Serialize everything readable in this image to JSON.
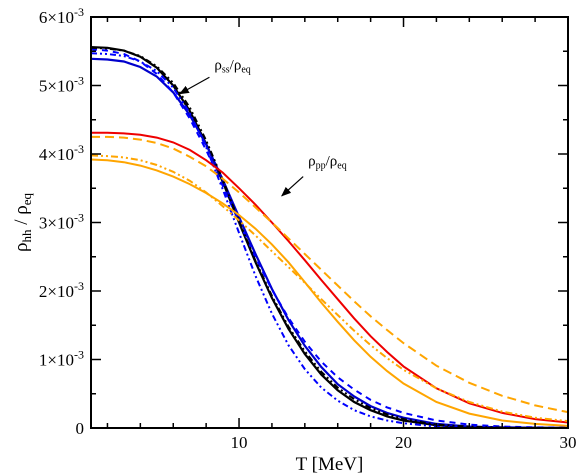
{
  "chart_data": {
    "type": "line",
    "xlabel": "T [MeV]",
    "ylabel": {
      "main": "ρ",
      "sub1": "hh",
      "sep": " / ",
      "main2": "ρ",
      "sub2": "eq"
    },
    "xlim": [
      1,
      30
    ],
    "ylim": [
      0,
      0.006
    ],
    "x_ticks": [
      10,
      20,
      30
    ],
    "x_tick_labels": [
      "10",
      "20",
      "30"
    ],
    "y_ticks": [
      0,
      0.001,
      0.002,
      0.003,
      0.004,
      0.005,
      0.006
    ],
    "y_tick_labels": [
      {
        "mant": "0",
        "exp": ""
      },
      {
        "mant": "1×10",
        "exp": "-3"
      },
      {
        "mant": "2×10",
        "exp": "-3"
      },
      {
        "mant": "3×10",
        "exp": "-3"
      },
      {
        "mant": "4×10",
        "exp": "-3"
      },
      {
        "mant": "5×10",
        "exp": "-3"
      },
      {
        "mant": "6×10",
        "exp": "-3"
      }
    ],
    "grid": false,
    "legend": "none",
    "annotations": [
      {
        "main": "ρ",
        "sub1": "ss",
        "sep": "/",
        "main2": "ρ",
        "sub2": "eq",
        "text_at": [
          8.5,
          0.00523
        ],
        "arrow_from": [
          8.2,
          0.00512
        ],
        "arrow_to": [
          6.4,
          0.00488
        ]
      },
      {
        "main": "ρ",
        "sub1": "pp",
        "sep": "/",
        "main2": "ρ",
        "sub2": "eq",
        "text_at": [
          14.2,
          0.00383
        ],
        "arrow_from": [
          13.9,
          0.00367
        ],
        "arrow_to": [
          12.6,
          0.00339
        ]
      }
    ],
    "series": [
      {
        "color": "#000000",
        "dash": "solid",
        "width": 2.2,
        "x": [
          1,
          2,
          3,
          4,
          5,
          6,
          7,
          8,
          9,
          10,
          11,
          12,
          13,
          14,
          15,
          16,
          17,
          18,
          19,
          20,
          22,
          24,
          26,
          28,
          30
        ],
        "y": [
          0.00556,
          0.00555,
          0.00551,
          0.00542,
          0.00526,
          0.005,
          0.00463,
          0.00415,
          0.0036,
          0.003,
          0.00242,
          0.0019,
          0.00145,
          0.00108,
          0.00078,
          0.00055,
          0.00038,
          0.00026,
          0.00017,
          0.00011,
          4e-05,
          1.5e-05,
          5e-06,
          1e-06,
          0.0
        ]
      },
      {
        "color": "#0000cc",
        "dash": "solid",
        "width": 2.2,
        "x": [
          1,
          2,
          3,
          4,
          5,
          6,
          7,
          8,
          9,
          10,
          11,
          12,
          13,
          14,
          15,
          16,
          17,
          18,
          19,
          20,
          22,
          24,
          26,
          28,
          30
        ],
        "y": [
          0.00539,
          0.00538,
          0.00535,
          0.00527,
          0.00513,
          0.0049,
          0.00457,
          0.00414,
          0.00363,
          0.00308,
          0.00254,
          0.00203,
          0.00158,
          0.0012,
          0.00089,
          0.00064,
          0.00046,
          0.00032,
          0.00022,
          0.00015,
          6e-05,
          2e-05,
          1e-05,
          2e-06,
          0.0
        ]
      },
      {
        "color": "#0000ff",
        "dash": "6,5",
        "width": 2,
        "x": [
          1,
          2,
          3,
          4,
          5,
          6,
          7,
          8,
          9,
          10,
          11,
          12,
          13,
          14,
          15,
          16,
          17,
          18,
          19,
          20,
          22,
          24,
          26,
          28,
          30
        ],
        "y": [
          0.00553,
          0.00551,
          0.00546,
          0.00535,
          0.00517,
          0.0049,
          0.00452,
          0.00406,
          0.00354,
          0.00301,
          0.00249,
          0.00202,
          0.00161,
          0.00126,
          0.00097,
          0.00074,
          0.00056,
          0.00041,
          0.0003,
          0.00022,
          0.00011,
          5e-05,
          2e-05,
          1e-05,
          5e-06
        ]
      },
      {
        "color": "#0000ff",
        "dash": "6,3,2,3,2,3",
        "width": 2,
        "x": [
          1,
          2,
          3,
          4,
          5,
          6,
          7,
          8,
          9,
          10,
          11,
          12,
          13,
          14,
          15,
          16,
          17,
          18,
          19,
          20,
          22,
          24,
          26,
          28,
          30
        ],
        "y": [
          0.00547,
          0.00546,
          0.00543,
          0.00535,
          0.00521,
          0.00497,
          0.0046,
          0.0041,
          0.00349,
          0.00285,
          0.00222,
          0.00167,
          0.00121,
          0.00086,
          0.00059,
          0.0004,
          0.00026,
          0.00017,
          0.00011,
          7e-05,
          2e-05,
          5e-06,
          1e-06,
          0.0,
          0.0
        ]
      },
      {
        "color": "#000000",
        "dash": "6,3,2,3,2,3",
        "width": 2,
        "x": [
          1,
          2,
          3,
          4,
          5,
          6,
          7,
          8,
          9,
          10,
          11,
          12,
          13,
          14,
          15,
          16,
          17,
          18,
          19,
          20,
          22,
          24,
          26,
          28,
          30
        ],
        "y": [
          0.00555,
          0.00554,
          0.00551,
          0.00543,
          0.00528,
          0.00504,
          0.00468,
          0.0042,
          0.00363,
          0.00302,
          0.00244,
          0.00193,
          0.00148,
          0.00112,
          0.00082,
          0.00059,
          0.00042,
          0.00029,
          0.0002,
          0.00013,
          5e-05,
          2e-05,
          5e-06,
          1e-06,
          0.0
        ]
      },
      {
        "color": "#ee0000",
        "dash": "solid",
        "width": 2,
        "x": [
          1,
          2,
          3,
          4,
          5,
          6,
          7,
          8,
          9,
          10,
          11,
          12,
          13,
          14,
          15,
          16,
          17,
          18,
          19,
          20,
          22,
          24,
          26,
          28,
          30
        ],
        "y": [
          0.00431,
          0.00431,
          0.0043,
          0.00428,
          0.00424,
          0.00417,
          0.00406,
          0.00391,
          0.00373,
          0.0035,
          0.00326,
          0.003,
          0.00273,
          0.00245,
          0.00216,
          0.00188,
          0.0016,
          0.00134,
          0.00111,
          0.0009,
          0.00058,
          0.00036,
          0.00022,
          0.00013,
          8e-05
        ]
      },
      {
        "color": "#ffa500",
        "dash": "9,5",
        "width": 2,
        "x": [
          1,
          2,
          3,
          4,
          5,
          6,
          7,
          8,
          9,
          10,
          11,
          12,
          13,
          14,
          15,
          16,
          17,
          18,
          19,
          20,
          22,
          24,
          26,
          28,
          30
        ],
        "y": [
          0.00425,
          0.00425,
          0.00424,
          0.00421,
          0.00416,
          0.00408,
          0.00396,
          0.00382,
          0.00364,
          0.00344,
          0.00322,
          0.003,
          0.00277,
          0.00254,
          0.00231,
          0.00208,
          0.00185,
          0.00163,
          0.00143,
          0.00124,
          0.00091,
          0.00066,
          0.00047,
          0.00033,
          0.00023
        ]
      },
      {
        "color": "#ffa500",
        "dash": "solid",
        "width": 2,
        "x": [
          1,
          2,
          3,
          4,
          5,
          6,
          7,
          8,
          9,
          10,
          11,
          12,
          13,
          14,
          15,
          16,
          17,
          18,
          19,
          20,
          22,
          24,
          26,
          28,
          30
        ],
        "y": [
          0.00392,
          0.00391,
          0.00388,
          0.00383,
          0.00376,
          0.00367,
          0.00356,
          0.00343,
          0.00328,
          0.00311,
          0.00291,
          0.00268,
          0.00242,
          0.00213,
          0.00183,
          0.00155,
          0.00128,
          0.00104,
          0.00083,
          0.00065,
          0.00038,
          0.00021,
          0.00011,
          6e-05,
          3e-05
        ]
      },
      {
        "color": "#ffa500",
        "dash": "7,3,2,3,2,3",
        "width": 2,
        "x": [
          1,
          2,
          3,
          4,
          5,
          6,
          7,
          8,
          9,
          10,
          11,
          12,
          13,
          14,
          15,
          16,
          17,
          18,
          19,
          20,
          22,
          24,
          26,
          28,
          30
        ],
        "y": [
          0.00398,
          0.00397,
          0.00395,
          0.00391,
          0.00384,
          0.00374,
          0.00361,
          0.00344,
          0.00324,
          0.00303,
          0.00281,
          0.00258,
          0.00235,
          0.00212,
          0.00188,
          0.00165,
          0.00142,
          0.00121,
          0.00102,
          0.00085,
          0.00058,
          0.00038,
          0.00024,
          0.00015,
          0.0001
        ]
      }
    ]
  }
}
